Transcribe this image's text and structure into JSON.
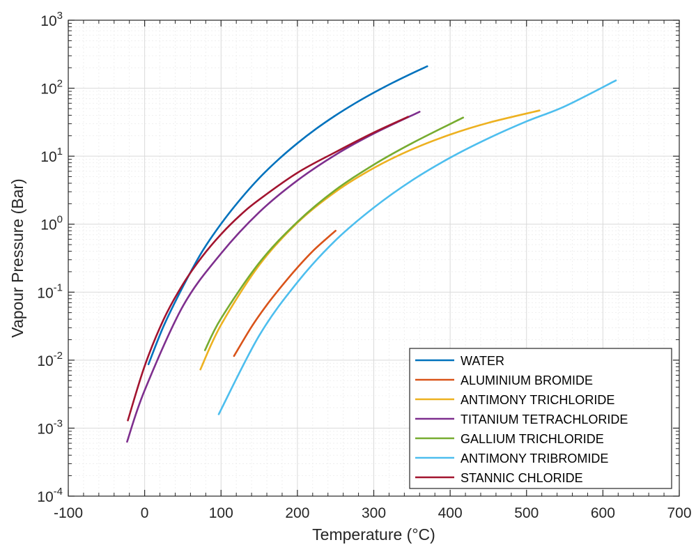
{
  "chart_data": {
    "type": "line",
    "title": "",
    "xlabel": "Temperature (°C)",
    "ylabel": "Vapour Pressure (Bar)",
    "xlim": [
      -100,
      700
    ],
    "ylim": [
      0.0001,
      1000
    ],
    "yscale": "log",
    "grid": true,
    "minor_grid": true,
    "legend_position": "bottom-right",
    "x_ticks": [
      "-100",
      "0",
      "100",
      "200",
      "300",
      "400",
      "500",
      "600",
      "700"
    ],
    "y_ticks": [
      {
        "base": "10",
        "exp": "-4",
        "value": 0.0001
      },
      {
        "base": "10",
        "exp": "-3",
        "value": 0.001
      },
      {
        "base": "10",
        "exp": "-2",
        "value": 0.01
      },
      {
        "base": "10",
        "exp": "-1",
        "value": 0.1
      },
      {
        "base": "10",
        "exp": "0",
        "value": 1
      },
      {
        "base": "10",
        "exp": "1",
        "value": 10
      },
      {
        "base": "10",
        "exp": "2",
        "value": 100
      },
      {
        "base": "10",
        "exp": "3",
        "value": 1000
      }
    ],
    "series": [
      {
        "name": "WATER",
        "color": "#0072BD",
        "x": [
          5,
          25,
          50,
          75,
          100,
          125,
          150,
          175,
          200,
          225,
          250,
          275,
          300,
          325,
          350,
          370
        ],
        "y": [
          0.0087,
          0.032,
          0.12,
          0.39,
          1.01,
          2.3,
          4.76,
          8.9,
          15.5,
          25.5,
          39.8,
          59.5,
          85.9,
          120.6,
          165.3,
          210
        ]
      },
      {
        "name": "ALUMINIUM BROMIDE",
        "color": "#D95319",
        "x": [
          117,
          140,
          160,
          180,
          200,
          220,
          240,
          250
        ],
        "y": [
          0.0115,
          0.031,
          0.065,
          0.125,
          0.23,
          0.4,
          0.64,
          0.8
        ]
      },
      {
        "name": "ANTIMONY TRICHLORIDE",
        "color": "#EDB120",
        "x": [
          73,
          100,
          150,
          200,
          250,
          300,
          350,
          400,
          450,
          517
        ],
        "y": [
          0.0073,
          0.033,
          0.25,
          1.05,
          3.0,
          6.7,
          12.6,
          20.8,
          31.0,
          47
        ]
      },
      {
        "name": "TITANIUM TETRACHLORIDE",
        "color": "#7E2F8E",
        "x": [
          -23,
          0,
          50,
          100,
          150,
          200,
          250,
          300,
          360
        ],
        "y": [
          0.00063,
          0.0036,
          0.062,
          0.37,
          1.5,
          4.4,
          10.5,
          21.5,
          45
        ]
      },
      {
        "name": "GALLIUM TRICHLORIDE",
        "color": "#77AC30",
        "x": [
          79,
          100,
          150,
          200,
          250,
          300,
          350,
          417
        ],
        "y": [
          0.014,
          0.041,
          0.27,
          1.08,
          3.2,
          7.5,
          15.5,
          37
        ]
      },
      {
        "name": "ANTIMONY TRIBROMIDE",
        "color": "#4DBEEE",
        "x": [
          97,
          150,
          200,
          250,
          300,
          350,
          400,
          450,
          500,
          550,
          617
        ],
        "y": [
          0.0016,
          0.023,
          0.14,
          0.58,
          1.75,
          4.4,
          9.5,
          18.3,
          32.5,
          54,
          130
        ]
      },
      {
        "name": "STANNIC CHLORIDE",
        "color": "#A2142F",
        "x": [
          -22,
          0,
          25,
          50,
          75,
          100,
          125,
          150,
          200,
          250,
          300,
          345
        ],
        "y": [
          0.0013,
          0.0082,
          0.04,
          0.13,
          0.33,
          0.71,
          1.35,
          2.3,
          5.7,
          11.5,
          22.3,
          38
        ]
      }
    ]
  }
}
